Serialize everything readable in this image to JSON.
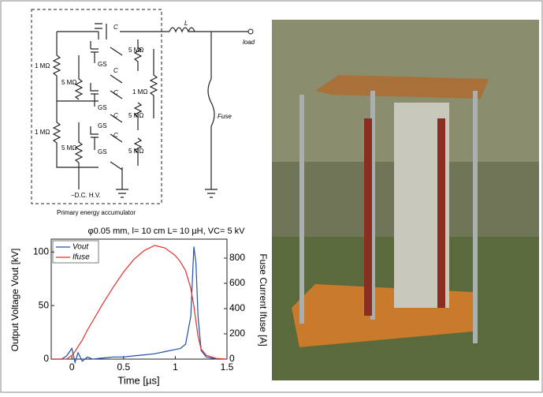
{
  "circuit": {
    "labels": [
      "L",
      "load",
      "Fuse",
      "C",
      "C",
      "C",
      "C",
      "C",
      "GS",
      "GS",
      "GS",
      "GS",
      "5 MΩ",
      "5 MΩ",
      "5 MΩ",
      "5 MΩ",
      "5 MΩ",
      "1 MΩ",
      "1 MΩ",
      "1 MΩ",
      "−D.C. H.V.",
      "Primary energy accumulator"
    ]
  },
  "chart_data": {
    "type": "line",
    "title": "φ0.05 mm, l= 10 cm L= 10 µH, VC= 5 kV",
    "x_label": "Time [µs]",
    "y_label": "Output Voltage Vout [kV]",
    "y2_label": "Fuse Current Ifuse [A]",
    "x": [
      -0.2,
      -0.1,
      -0.05,
      0,
      0.03,
      0.06,
      0.1,
      0.15,
      0.2,
      0.3,
      0.4,
      0.5,
      0.6,
      0.7,
      0.8,
      0.9,
      1.0,
      1.05,
      1.1,
      1.15,
      1.18,
      1.2,
      1.22,
      1.25,
      1.3,
      1.4,
      1.5
    ],
    "series": [
      {
        "name": "Vout",
        "color": "#1f4fa8",
        "values": [
          0,
          0,
          3,
          10,
          -3,
          6,
          -2,
          2,
          0,
          1,
          2,
          2,
          3,
          4,
          5,
          7,
          9,
          10,
          14,
          40,
          105,
          90,
          40,
          8,
          2,
          0,
          0
        ]
      },
      {
        "name": "Ifuse",
        "color": "#e0302a",
        "axis": "y2",
        "values": [
          0,
          0,
          0,
          30,
          60,
          100,
          150,
          230,
          300,
          440,
          570,
          690,
          790,
          860,
          900,
          880,
          820,
          770,
          700,
          560,
          420,
          300,
          180,
          80,
          30,
          5,
          0
        ]
      }
    ],
    "xlim": [
      -0.2,
      1.5
    ],
    "xticks": [
      0,
      0.5,
      1,
      1.5
    ],
    "ylim": [
      0,
      112
    ],
    "yticks": [
      0,
      50,
      100
    ],
    "y2lim": [
      0,
      950
    ],
    "y2ticks": [
      0,
      200,
      400,
      600,
      800
    ],
    "legend": "upper-left"
  }
}
